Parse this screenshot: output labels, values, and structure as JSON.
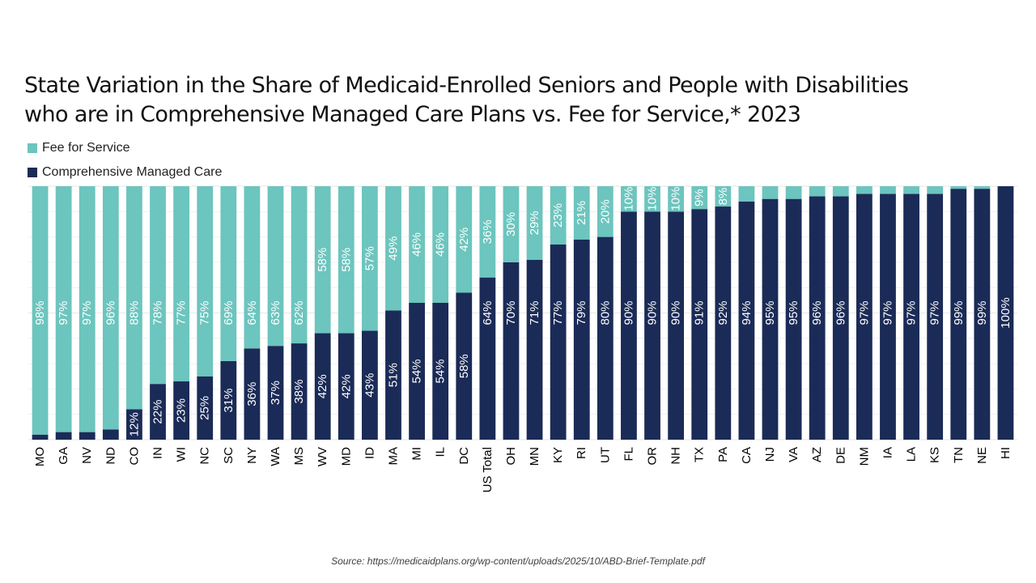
{
  "title_lines": [
    "State Variation in the Share of Medicaid-Enrolled Seniors and People with Disabilities",
    "who are in Comprehensive Managed Care Plans vs. Fee for Service,* 2023"
  ],
  "source": "Source: https://medicaidplans.org/wp-content/uploads/2025/10/ABD-Brief-Template.pdf",
  "colors": {
    "fee_for_service": "#6cc5be",
    "managed_care": "#1b2b57",
    "gridline": "#eeeeee",
    "label_text": "#ffffff"
  },
  "chart_data": {
    "type": "bar",
    "stacked": true,
    "orientation": "vertical",
    "title": "State Variation in the Share of Medicaid-Enrolled Seniors and People with Disabilities who are in Comprehensive Managed Care Plans vs. Fee for Service,* 2023",
    "xlabel": "",
    "ylabel": "",
    "ylim": [
      0,
      100
    ],
    "grid": true,
    "legend_position": "top-left",
    "categories": [
      "MO",
      "GA",
      "NV",
      "ND",
      "CO",
      "IN",
      "WI",
      "NC",
      "SC",
      "NY",
      "WA",
      "MS",
      "WV",
      "MD",
      "ID",
      "MA",
      "MI",
      "IL",
      "DC",
      "US Total",
      "OH",
      "MN",
      "KY",
      "RI",
      "UT",
      "FL",
      "OR",
      "NH",
      "TX",
      "PA",
      "CA",
      "NJ",
      "VA",
      "AZ",
      "DE",
      "NM",
      "IA",
      "LA",
      "KS",
      "TN",
      "NE",
      "HI"
    ],
    "series": [
      {
        "name": "Comprehensive Managed Care",
        "values": [
          2,
          3,
          3,
          4,
          12,
          22,
          23,
          25,
          31,
          36,
          37,
          38,
          42,
          42,
          43,
          51,
          54,
          54,
          58,
          64,
          70,
          71,
          77,
          79,
          80,
          90,
          90,
          90,
          91,
          92,
          94,
          95,
          95,
          96,
          96,
          97,
          97,
          97,
          97,
          99,
          99,
          100
        ],
        "labels": [
          "",
          "",
          "",
          "",
          "12%",
          "22%",
          "23%",
          "25%",
          "31%",
          "36%",
          "37%",
          "38%",
          "42%",
          "42%",
          "43%",
          "51%",
          "54%",
          "54%",
          "58%",
          "64%",
          "70%",
          "71%",
          "77%",
          "79%",
          "80%",
          "90%",
          "90%",
          "90%",
          "91%",
          "92%",
          "94%",
          "95%",
          "95%",
          "96%",
          "96%",
          "97%",
          "97%",
          "97%",
          "97%",
          "99%",
          "99%",
          "100%"
        ]
      },
      {
        "name": "Fee for Service",
        "values": [
          98,
          97,
          97,
          96,
          88,
          78,
          77,
          75,
          69,
          64,
          63,
          62,
          58,
          58,
          57,
          49,
          46,
          46,
          42,
          36,
          30,
          29,
          23,
          21,
          20,
          10,
          10,
          10,
          9,
          8,
          6,
          5,
          5,
          4,
          4,
          3,
          3,
          3,
          3,
          1,
          1,
          0
        ],
        "labels": [
          "98%",
          "97%",
          "97%",
          "96%",
          "88%",
          "78%",
          "77%",
          "75%",
          "69%",
          "64%",
          "63%",
          "62%",
          "58%",
          "58%",
          "57%",
          "49%",
          "46%",
          "46%",
          "42%",
          "36%",
          "30%",
          "29%",
          "23%",
          "21%",
          "20%",
          "10%",
          "10%",
          "10%",
          "9%",
          "8%",
          "",
          "",
          "",
          "",
          "",
          "",
          "",
          "",
          "",
          "",
          "",
          ""
        ]
      }
    ],
    "legend": [
      {
        "name": "Fee for Service",
        "color": "#6cc5be"
      },
      {
        "name": "Comprehensive Managed Care",
        "color": "#1b2b57"
      }
    ]
  }
}
